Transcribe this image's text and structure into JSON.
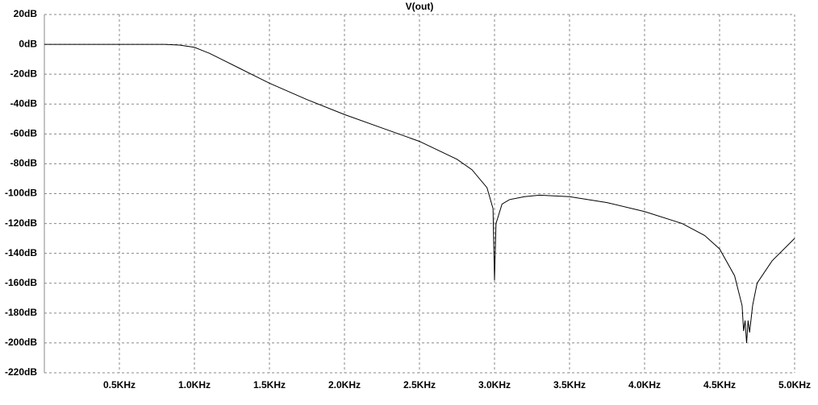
{
  "chart_data": {
    "type": "line",
    "title": "V(out)",
    "x": [
      0,
      0.5,
      0.8,
      0.9,
      1.0,
      1.1,
      1.2,
      1.3,
      1.4,
      1.5,
      1.75,
      2.0,
      2.25,
      2.5,
      2.75,
      2.85,
      2.95,
      2.99,
      3.0,
      3.01,
      3.05,
      3.1,
      3.2,
      3.3,
      3.5,
      3.75,
      4.0,
      4.25,
      4.4,
      4.5,
      4.6,
      4.65,
      4.66,
      4.67,
      4.68,
      4.69,
      4.7,
      4.72,
      4.75,
      4.85,
      5.0
    ],
    "values": [
      0,
      0,
      0,
      -0.5,
      -2,
      -6,
      -11,
      -16,
      -21,
      -26,
      -37,
      -47,
      -56,
      -65,
      -77,
      -84,
      -96,
      -110,
      -158,
      -120,
      -107,
      -104,
      -102,
      -101,
      -102,
      -106,
      -112,
      -120,
      -128,
      -137,
      -155,
      -175,
      -192,
      -185,
      -200,
      -185,
      -193,
      -175,
      -160,
      -145,
      -130
    ],
    "color": "#000000",
    "xlim": [
      0,
      5
    ],
    "ylim": [
      -220,
      20
    ],
    "xticks": [
      {
        "value": 0.5,
        "label": "0.5KHz"
      },
      {
        "value": 1.0,
        "label": "1.0KHz"
      },
      {
        "value": 1.5,
        "label": "1.5KHz"
      },
      {
        "value": 2.0,
        "label": "2.0KHz"
      },
      {
        "value": 2.5,
        "label": "2.5KHz"
      },
      {
        "value": 3.0,
        "label": "3.0KHz"
      },
      {
        "value": 3.5,
        "label": "3.5KHz"
      },
      {
        "value": 4.0,
        "label": "4.0KHz"
      },
      {
        "value": 4.5,
        "label": "4.5KHz"
      },
      {
        "value": 5.0,
        "label": "5.0KHz"
      }
    ],
    "yticks": [
      {
        "value": 20,
        "label": "20dB"
      },
      {
        "value": 0,
        "label": "0dB"
      },
      {
        "value": -20,
        "label": "-20dB"
      },
      {
        "value": -40,
        "label": "-40dB"
      },
      {
        "value": -60,
        "label": "-60dB"
      },
      {
        "value": -80,
        "label": "-80dB"
      },
      {
        "value": -100,
        "label": "-100dB"
      },
      {
        "value": -120,
        "label": "-120dB"
      },
      {
        "value": -140,
        "label": "-140dB"
      },
      {
        "value": -160,
        "label": "-160dB"
      },
      {
        "value": -180,
        "label": "-180dB"
      },
      {
        "value": -200,
        "label": "-200dB"
      },
      {
        "value": -220,
        "label": "-220dB"
      }
    ],
    "grid": true
  }
}
